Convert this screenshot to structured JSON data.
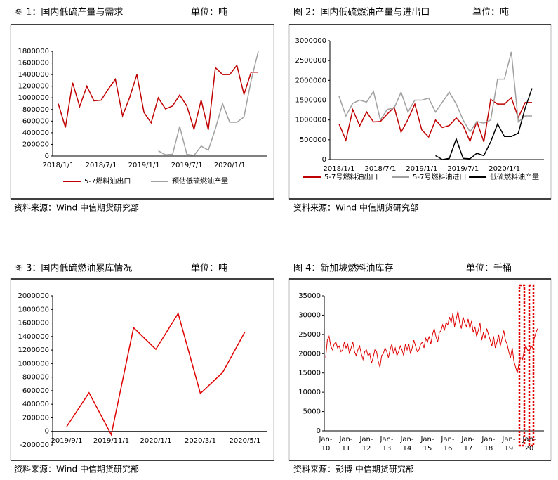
{
  "chart_data": [
    {
      "type": "line",
      "title": "图 1：国内低硫产量与需求",
      "unit": "单位：吨",
      "source": "资料来源：Wind  中信期货研究部",
      "categories": [
        "2018/1/1",
        null,
        null,
        null,
        null,
        null,
        "2018/7/1",
        null,
        null,
        null,
        null,
        null,
        "2019/1/1",
        null,
        null,
        null,
        null,
        null,
        "2019/7/1",
        null,
        null,
        null,
        null,
        null,
        "2020/1/1",
        null,
        null,
        null,
        null
      ],
      "series": [
        {
          "name": "5-7燃料油出口",
          "color": "#c00000",
          "values": [
            900000,
            490000,
            1260000,
            850000,
            1200000,
            950000,
            960000,
            1150000,
            1320000,
            690000,
            1010000,
            1400000,
            750000,
            570000,
            1000000,
            810000,
            860000,
            1050000,
            860000,
            460000,
            960000,
            450000,
            1520000,
            1400000,
            1400000,
            1560000,
            1060000,
            1440000,
            1440000
          ]
        },
        {
          "name": "预估低硫燃油产量",
          "color": "#a0a0a0",
          "values": [
            null,
            null,
            null,
            null,
            null,
            null,
            null,
            null,
            null,
            null,
            null,
            null,
            null,
            null,
            90000,
            20000,
            30000,
            510000,
            30000,
            10000,
            170000,
            100000,
            470000,
            900000,
            580000,
            580000,
            670000,
            1300000,
            1800000
          ]
        }
      ],
      "ylim": [
        0,
        1800000
      ],
      "yticks": [
        0,
        200000,
        400000,
        600000,
        800000,
        1000000,
        1200000,
        1400000,
        1600000,
        1800000
      ]
    },
    {
      "type": "line",
      "title": "图 2：国内低硫燃油产量与进出口",
      "unit": "单位：吨",
      "source": "资料来源：Wind  中信期货研究部",
      "categories": [
        "2018/1/1",
        null,
        null,
        null,
        null,
        null,
        "2018/7/1",
        null,
        null,
        null,
        null,
        null,
        "2019/1/1",
        null,
        null,
        null,
        null,
        null,
        "2019/7/1",
        null,
        null,
        null,
        null,
        null,
        "2020/1/1",
        null,
        null,
        null,
        null
      ],
      "series": [
        {
          "name": "5-7号燃料油出口",
          "color": "#c00000",
          "values": [
            900000,
            490000,
            1260000,
            850000,
            1200000,
            950000,
            960000,
            1150000,
            1320000,
            690000,
            1010000,
            1400000,
            750000,
            570000,
            1000000,
            810000,
            860000,
            1050000,
            860000,
            460000,
            960000,
            450000,
            1520000,
            1400000,
            1400000,
            1560000,
            1060000,
            1440000,
            1440000
          ]
        },
        {
          "name": "5-7号燃料油进口",
          "color": "#a0a0a0",
          "values": [
            1600000,
            1100000,
            1420000,
            1500000,
            1450000,
            1720000,
            1000000,
            1270000,
            1300000,
            1700000,
            1200000,
            1500000,
            1500000,
            1550000,
            1200000,
            1450000,
            1700000,
            1400000,
            1000000,
            700000,
            960000,
            920000,
            1000000,
            2030000,
            2030000,
            2720000,
            950000,
            1100000,
            1100000
          ]
        },
        {
          "name": "低硫燃料油产量",
          "color": "#000000",
          "values": [
            null,
            null,
            null,
            null,
            null,
            null,
            null,
            null,
            null,
            null,
            null,
            null,
            null,
            null,
            100000,
            0,
            30000,
            520000,
            30000,
            20000,
            160000,
            100000,
            450000,
            900000,
            580000,
            580000,
            670000,
            1300000,
            1800000
          ]
        }
      ],
      "ylim": [
        0,
        3000000
      ],
      "yticks": [
        0,
        500000,
        1000000,
        1500000,
        2000000,
        2500000,
        3000000
      ]
    },
    {
      "type": "line",
      "title": "图 3：国内低硫燃油累库情况",
      "unit": "单位：吨",
      "source": "资料来源：Wind  中信期货研究部",
      "categories": [
        "2019/9/1",
        null,
        "2019/11/1",
        null,
        "2020/1/1",
        null,
        "2020/3/1",
        null,
        "2020/5/1"
      ],
      "series": [
        {
          "color": "#e00000",
          "values": [
            70000,
            570000,
            -50000,
            1530000,
            1210000,
            1740000,
            560000,
            870000,
            1470000
          ]
        }
      ],
      "ylim": [
        -200000,
        2000000
      ],
      "yticks": [
        -200000,
        0,
        200000,
        400000,
        600000,
        800000,
        1000000,
        1200000,
        1400000,
        1600000,
        1800000,
        2000000
      ]
    },
    {
      "type": "line",
      "title": "图 4：新加坡燃料油库存",
      "unit": "单位：千桶",
      "source": "资料来源：彭博  中信期货研究部",
      "categories": [
        "Jan-10",
        null,
        null,
        null,
        null,
        null,
        null,
        null,
        null,
        null,
        null,
        null,
        "Jan-11",
        null,
        null,
        null,
        null,
        null,
        null,
        null,
        null,
        null,
        null,
        null,
        "Jan-12",
        null,
        null,
        null,
        null,
        null,
        null,
        null,
        null,
        null,
        null,
        null,
        "Jan-13",
        null,
        null,
        null,
        null,
        null,
        null,
        null,
        null,
        null,
        null,
        null,
        "Jan-14",
        null,
        null,
        null,
        null,
        null,
        null,
        null,
        null,
        null,
        null,
        null,
        "Jan-15",
        null,
        null,
        null,
        null,
        null,
        null,
        null,
        null,
        null,
        null,
        null,
        "Jan-16",
        null,
        null,
        null,
        null,
        null,
        null,
        null,
        null,
        null,
        null,
        null,
        "Jan-17",
        null,
        null,
        null,
        null,
        null,
        null,
        null,
        null,
        null,
        null,
        null,
        "Jan-18",
        null,
        null,
        null,
        null,
        null,
        null,
        null,
        null,
        null,
        null,
        null,
        "Jan-19",
        null,
        null,
        null,
        null,
        null,
        null,
        null,
        null,
        null,
        null,
        null,
        "Jan-20",
        null,
        null,
        null,
        null,
        null
      ],
      "series": [
        {
          "color": "#e00000",
          "values": [
            19000,
            23500,
            24500,
            22000,
            21000,
            22500,
            23000,
            21500,
            22000,
            20500,
            21000,
            23000,
            21500,
            22500,
            20000,
            21500,
            23000,
            20500,
            19500,
            21000,
            22000,
            20000,
            18500,
            20500,
            21000,
            19500,
            20000,
            17500,
            19000,
            21000,
            20500,
            18000,
            16500,
            19500,
            20000,
            21500,
            20500,
            19000,
            21000,
            22500,
            20000,
            21500,
            19500,
            20500,
            22000,
            21000,
            19500,
            22500,
            21000,
            22500,
            20000,
            21500,
            23500,
            22000,
            20500,
            21000,
            22500,
            23000,
            21500,
            24000,
            23000,
            24500,
            22500,
            25000,
            26500,
            24500,
            23000,
            25500,
            26000,
            27500,
            26000,
            28000,
            27500,
            29500,
            28000,
            30500,
            27000,
            29000,
            31000,
            28000,
            26500,
            29500,
            28000,
            27000,
            29000,
            26500,
            28500,
            25500,
            27000,
            24500,
            26000,
            28000,
            23500,
            25500,
            24000,
            26500,
            25000,
            23500,
            22000,
            24500,
            21500,
            23000,
            25000,
            22000,
            24000,
            26000,
            23500,
            22500,
            20500,
            19000,
            21500,
            18000,
            16500,
            15000,
            17500,
            19000,
            18500,
            20500,
            22000,
            21000,
            20500,
            22000,
            21500,
            24000,
            25500,
            26500
          ]
        }
      ],
      "ylim": [
        0,
        35000
      ],
      "yticks": [
        0,
        5000,
        10000,
        15000,
        20000,
        25000,
        30000,
        35000
      ]
    }
  ]
}
